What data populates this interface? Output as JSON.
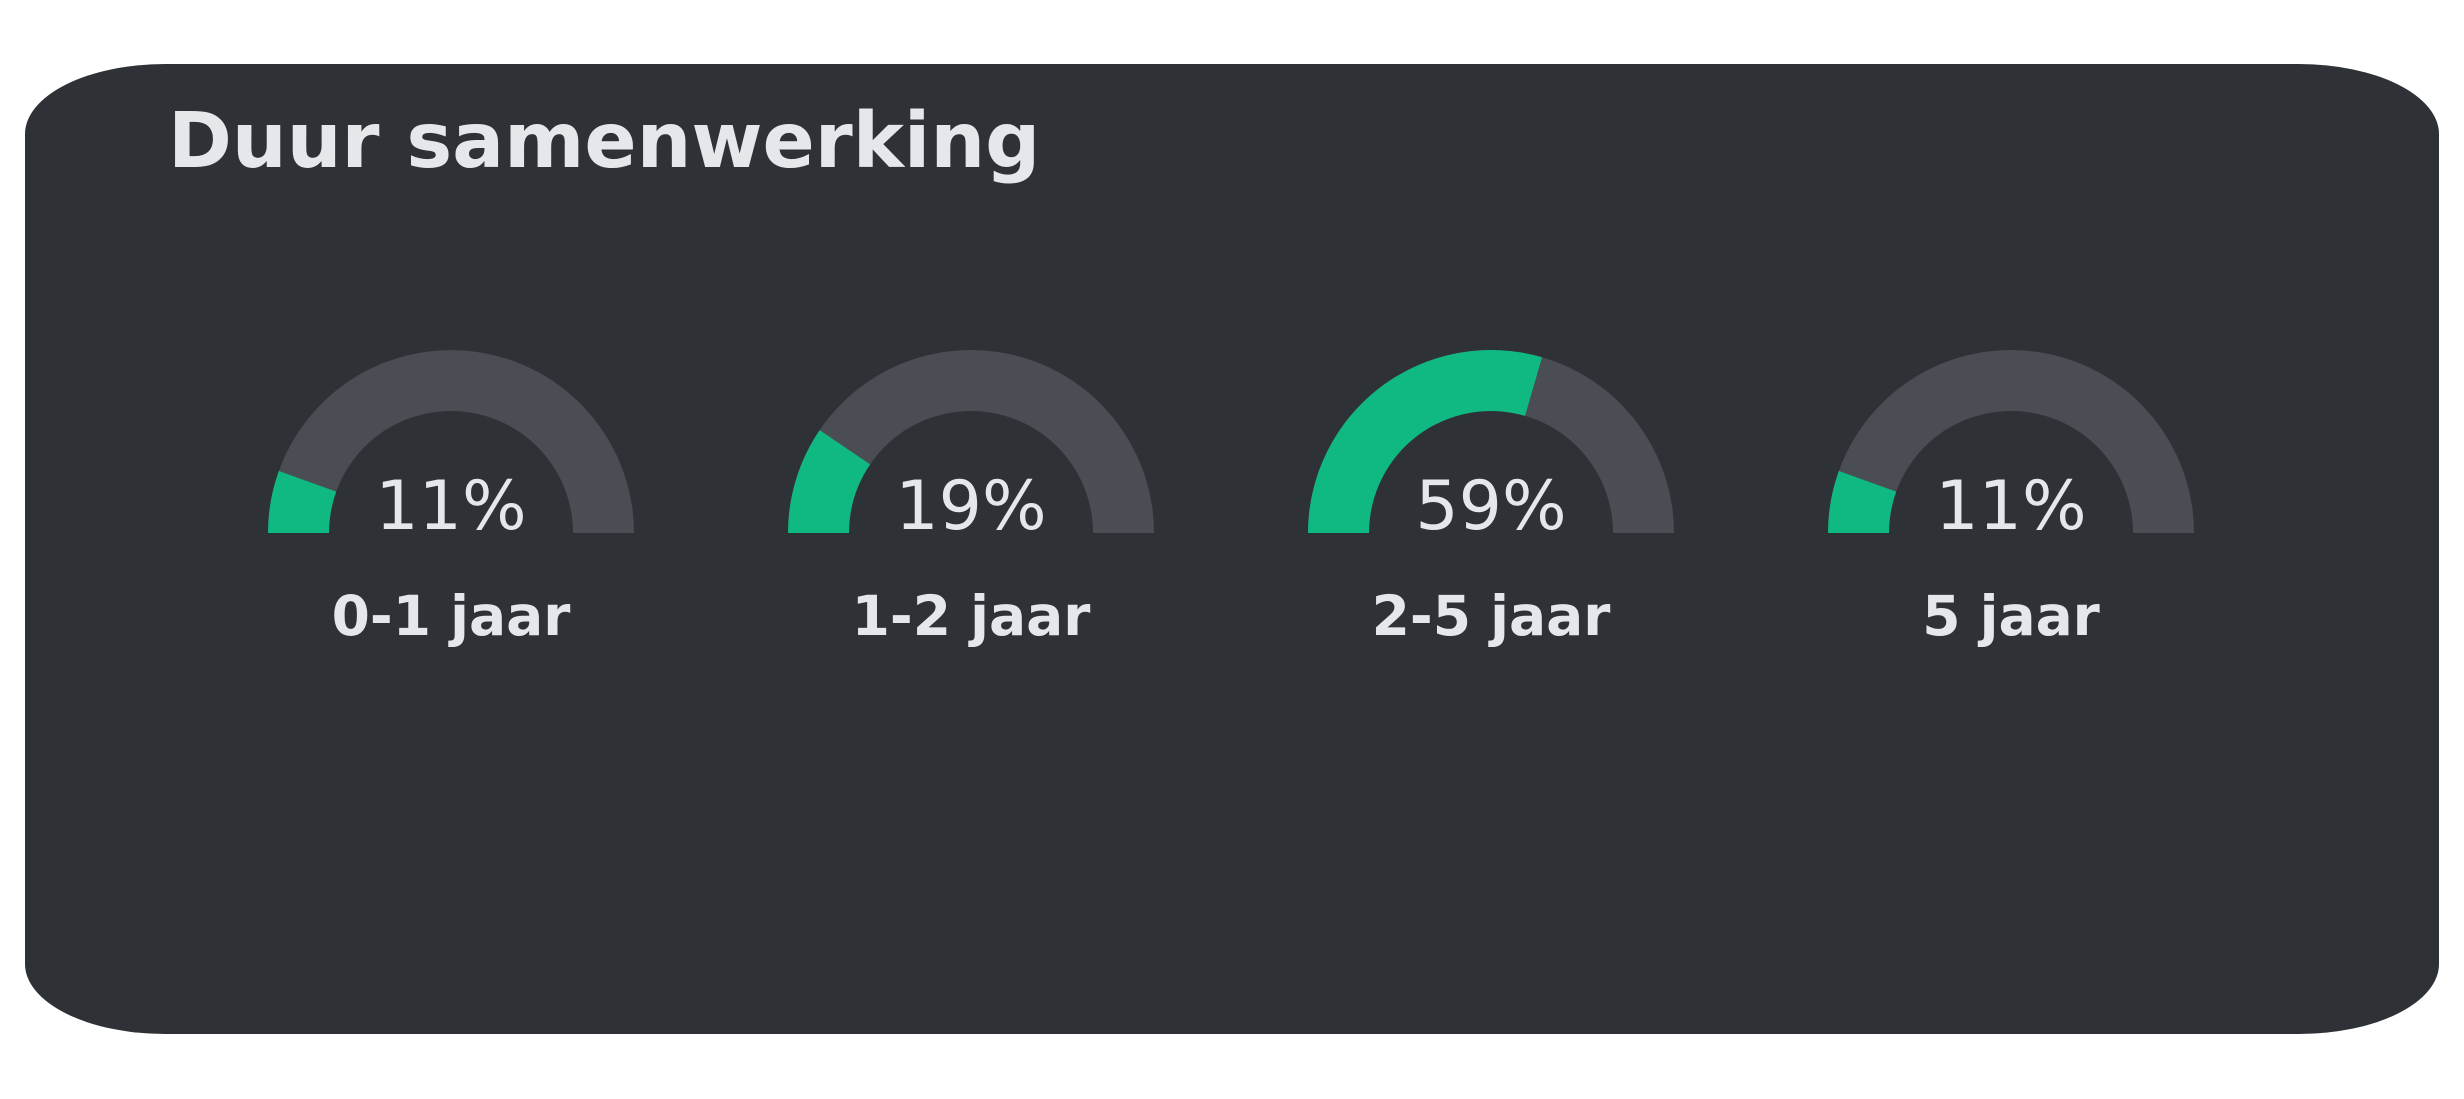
{
  "card": {
    "title": "Duur samenwerking"
  },
  "colors": {
    "background": "#2e3136",
    "track": "#4a4d54",
    "fill": "#10b981",
    "text": "#e6e7eb"
  },
  "chart_data": {
    "type": "gauge",
    "title": "Duur samenwerking",
    "range": [
      0,
      100
    ],
    "unit": "%",
    "items": [
      {
        "category": "0-1 jaar",
        "value": 11,
        "label": "11%"
      },
      {
        "category": "1-2 jaar",
        "value": 19,
        "label": "19%"
      },
      {
        "category": "2-5 jaar",
        "value": 59,
        "label": "59%"
      },
      {
        "category": "5 jaar",
        "value": 11,
        "label": "11%"
      }
    ]
  }
}
